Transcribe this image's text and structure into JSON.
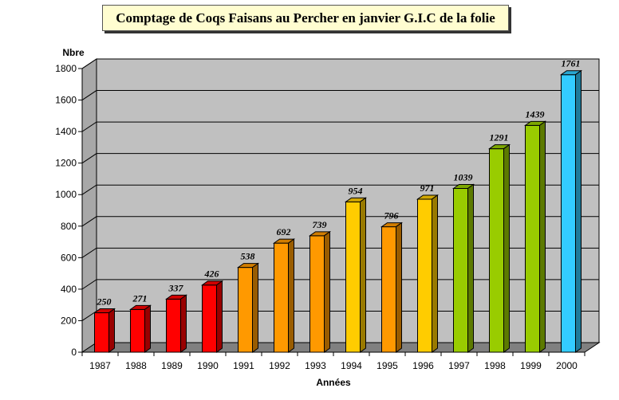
{
  "chart_data": {
    "type": "bar",
    "title": "Comptage de Coqs Faisans au Percher en janvier G.I.C de la folie",
    "ylabel": "Nbre",
    "xlabel": "Années",
    "ylim": [
      0,
      1800
    ],
    "yticks": [
      0,
      200,
      400,
      600,
      800,
      1000,
      1200,
      1400,
      1600,
      1800
    ],
    "grid": true,
    "categories": [
      "1987",
      "1988",
      "1989",
      "1990",
      "1991",
      "1992",
      "1993",
      "1994",
      "1995",
      "1996",
      "1997",
      "1998",
      "1999",
      "2000"
    ],
    "values": [
      250,
      271,
      337,
      426,
      538,
      692,
      739,
      954,
      796,
      971,
      1039,
      1291,
      1439,
      1761
    ],
    "data_labels": [
      "250",
      "271",
      "337",
      "426",
      "538",
      "692",
      "739",
      "954",
      "796",
      "971",
      "1039",
      "1291",
      "1439",
      "1761"
    ],
    "bar_colors": [
      "#ff0000",
      "#ff0000",
      "#ff0000",
      "#ff0000",
      "#ff9900",
      "#ff9900",
      "#ff9900",
      "#ffcc00",
      "#ff9900",
      "#ffcc00",
      "#99cc00",
      "#99cc00",
      "#99cc00",
      "#33ccff"
    ]
  }
}
